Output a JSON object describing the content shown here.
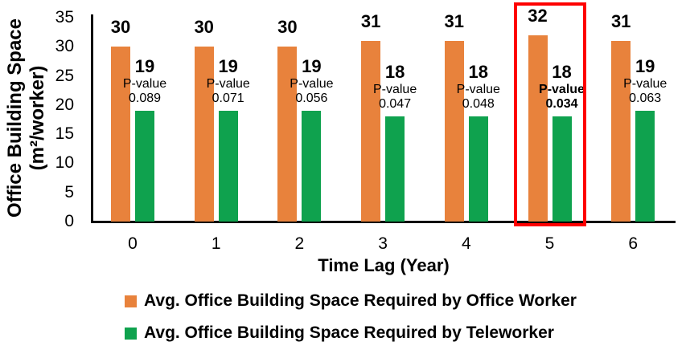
{
  "chart_data": {
    "type": "bar",
    "title": "",
    "xlabel": "Time Lag (Year)",
    "ylabel_line1": "Office Building Space",
    "ylabel_line2": "(m²/worker)",
    "categories": [
      "0",
      "1",
      "2",
      "3",
      "4",
      "5",
      "6"
    ],
    "series": [
      {
        "name": "Avg. Office Building Space Required by Office Worker",
        "color": "#e8823c",
        "values": [
          30,
          30,
          30,
          31,
          31,
          32,
          31
        ]
      },
      {
        "name": "Avg. Office Building Space Required by Teleworker",
        "color": "#0fa24e",
        "values": [
          19,
          19,
          19,
          18,
          18,
          18,
          19
        ]
      }
    ],
    "p_label": "P-value",
    "p_values": [
      "0.089",
      "0.071",
      "0.056",
      "0.047",
      "0.048",
      "0.034",
      "0.063"
    ],
    "highlight": {
      "category": "5",
      "index": 5,
      "color": "#fe0000"
    },
    "ylim": [
      0,
      35
    ],
    "y_ticks": [
      0,
      5,
      10,
      15,
      20,
      25,
      30,
      35
    ],
    "grid": false,
    "legend_position": "bottom-left"
  }
}
